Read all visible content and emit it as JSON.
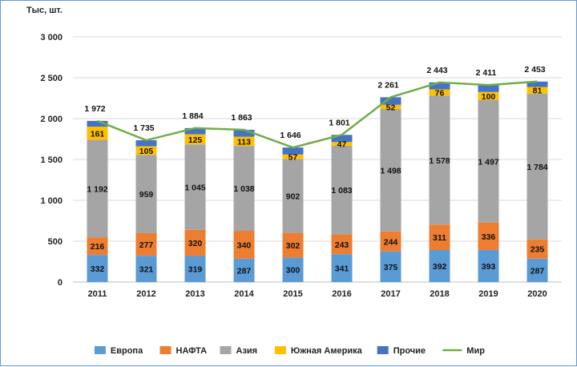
{
  "chart_data": {
    "type": "bar",
    "stacked": true,
    "unit_label": "Тыс, шт.",
    "categories": [
      "2011",
      "2012",
      "2013",
      "2014",
      "2015",
      "2016",
      "2017",
      "2018",
      "2019",
      "2020"
    ],
    "ylim": [
      0,
      3000
    ],
    "yticks": [
      0,
      500,
      1000,
      1500,
      2000,
      2500,
      3000
    ],
    "ytick_labels": [
      "0",
      "500",
      "1 000",
      "1 500",
      "2 000",
      "2 500",
      "3 000"
    ],
    "grid": true,
    "legend": "bottom",
    "series": [
      {
        "name": "Европа",
        "color": "#5b9bd5",
        "values": [
          332,
          321,
          319,
          287,
          300,
          341,
          375,
          392,
          393,
          287
        ],
        "labels": [
          "332",
          "321",
          "319",
          "287",
          "300",
          "341",
          "375",
          "392",
          "393",
          "287"
        ]
      },
      {
        "name": "НАФТА",
        "color": "#ed7d31",
        "values": [
          216,
          277,
          320,
          340,
          302,
          243,
          244,
          311,
          336,
          235
        ],
        "labels": [
          "216",
          "277",
          "320",
          "340",
          "302",
          "243",
          "244",
          "311",
          "336",
          "235"
        ]
      },
      {
        "name": "Азия",
        "color": "#a5a5a5",
        "values": [
          1192,
          959,
          1045,
          1038,
          902,
          1083,
          1498,
          1578,
          1497,
          1784
        ],
        "labels": [
          "1 192",
          "959",
          "1 045",
          "1 038",
          "902",
          "1 083",
          "1 498",
          "1 578",
          "1 497",
          "1 784"
        ]
      },
      {
        "name": "Южная Америка",
        "color": "#ffc000",
        "values": [
          161,
          105,
          125,
          113,
          57,
          47,
          52,
          76,
          100,
          81
        ],
        "labels": [
          "161",
          "105",
          "125",
          "113",
          "57",
          "47",
          "52",
          "76",
          "100",
          "81"
        ]
      },
      {
        "name": "Прочие",
        "color": "#4472c4",
        "values": [
          71,
          73,
          75,
          85,
          85,
          87,
          92,
          86,
          85,
          66
        ],
        "labels": []
      }
    ],
    "line": {
      "name": "Мир",
      "color": "#70ad47",
      "values": [
        1972,
        1735,
        1884,
        1863,
        1646,
        1801,
        2261,
        2443,
        2411,
        2453
      ],
      "labels": [
        "1 972",
        "1 735",
        "1 884",
        "1 863",
        "1 646",
        "1 801",
        "2 261",
        "2 443",
        "2 411",
        "2 453"
      ]
    }
  }
}
